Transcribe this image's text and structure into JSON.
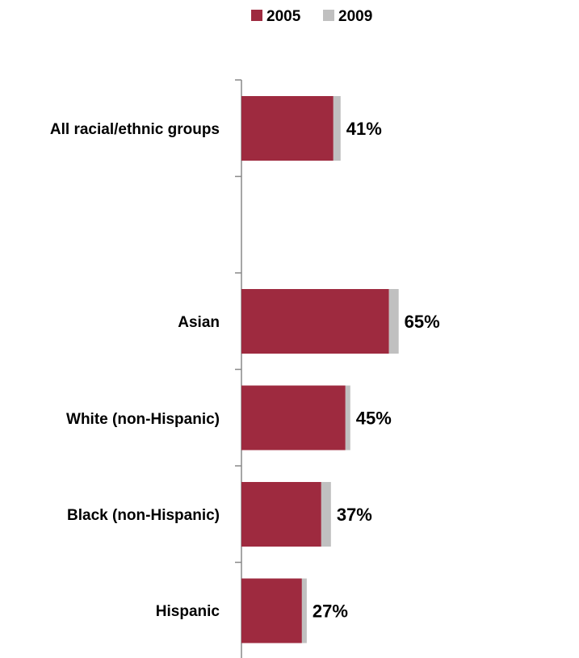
{
  "chart_data": {
    "type": "bar",
    "orientation": "horizontal",
    "stacked": true,
    "categories": [
      "All racial/ethnic groups",
      "",
      "Asian",
      "White (non-Hispanic)",
      "Black (non-Hispanic)",
      "Hispanic"
    ],
    "series": [
      {
        "name": "2005",
        "values": [
          38,
          null,
          61,
          43,
          33,
          25
        ]
      },
      {
        "name": "2009",
        "values": [
          3,
          null,
          4,
          2,
          4,
          2
        ]
      }
    ],
    "totals_labels": [
      "41%",
      "",
      "65%",
      "45%",
      "37%",
      "27%"
    ],
    "xlim": [
      0,
      100
    ],
    "legend": "top",
    "grid": false,
    "colors": {
      "2005": "#9e2a3f",
      "2009": "#c0c0c0",
      "axis": "#888888"
    }
  }
}
